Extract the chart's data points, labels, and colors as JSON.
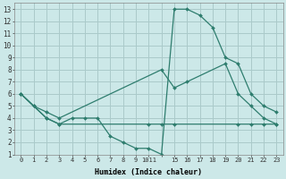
{
  "xlabel": "Humidex (Indice chaleur)",
  "bg_color": "#cce8e8",
  "grid_color": "#aacaca",
  "line_color": "#2e7d6e",
  "xtick_vals": [
    0,
    1,
    2,
    3,
    4,
    5,
    6,
    7,
    8,
    9,
    10,
    11,
    12,
    13,
    14,
    15,
    16,
    17,
    18,
    19,
    20
  ],
  "xtick_labels": [
    "0",
    "1",
    "2",
    "3",
    "4",
    "5",
    "6",
    "7",
    "8",
    "9",
    "1011",
    "",
    "15",
    "16",
    "17",
    "18",
    "19",
    "20",
    "21",
    "22",
    "23"
  ],
  "ytick_vals": [
    1,
    2,
    3,
    4,
    5,
    6,
    7,
    8,
    9,
    10,
    11,
    12,
    13
  ],
  "xlim": [
    -0.5,
    20.5
  ],
  "ylim": [
    1,
    13.5
  ],
  "lines": [
    {
      "x": [
        0,
        1,
        2,
        3,
        4,
        5,
        6,
        7,
        8,
        9,
        10,
        11,
        12,
        13,
        14,
        15,
        16,
        17,
        18,
        19,
        20
      ],
      "y": [
        6,
        5,
        4,
        3.5,
        4,
        4,
        4,
        2.5,
        2.0,
        1.5,
        1.5,
        1.0,
        13.0,
        13.0,
        12.5,
        11.5,
        9.0,
        8.5,
        6.0,
        5.0,
        4.5
      ]
    },
    {
      "x": [
        0,
        1,
        2,
        3,
        11,
        12,
        13,
        16,
        17,
        18,
        19,
        20
      ],
      "y": [
        6,
        5,
        4.5,
        4.0,
        8.0,
        6.5,
        7.0,
        8.5,
        6.0,
        5.0,
        4.0,
        3.5
      ]
    },
    {
      "x": [
        0,
        2,
        3,
        10,
        11,
        12,
        17,
        18,
        19,
        20
      ],
      "y": [
        6,
        4,
        3.5,
        3.5,
        3.5,
        3.5,
        3.5,
        3.5,
        3.5,
        3.5
      ]
    }
  ]
}
